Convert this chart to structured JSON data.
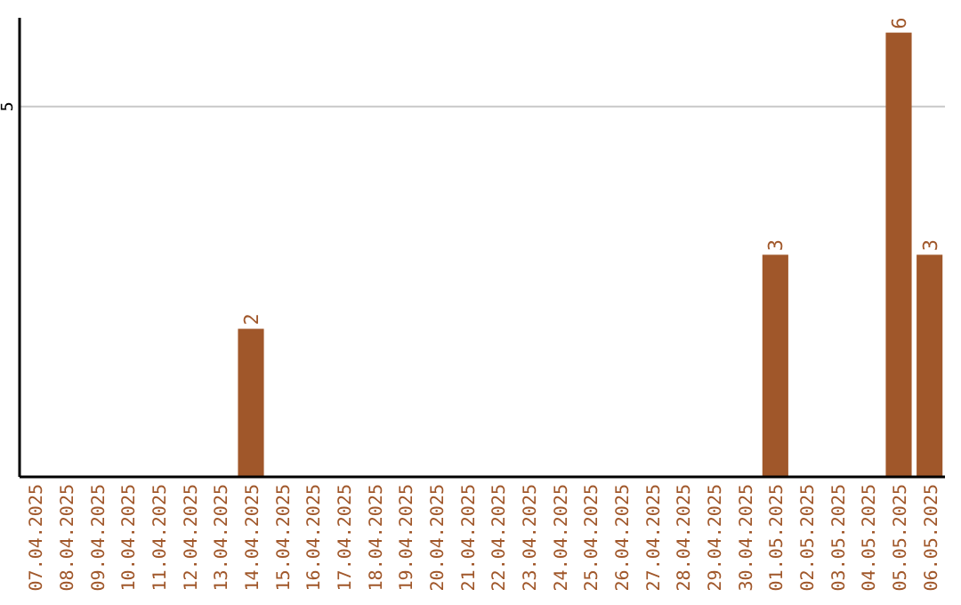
{
  "chart_data": {
    "type": "bar",
    "categories": [
      "07.04.2025",
      "08.04.2025",
      "09.04.2025",
      "10.04.2025",
      "11.04.2025",
      "12.04.2025",
      "13.04.2025",
      "14.04.2025",
      "15.04.2025",
      "16.04.2025",
      "17.04.2025",
      "18.04.2025",
      "19.04.2025",
      "20.04.2025",
      "21.04.2025",
      "22.04.2025",
      "23.04.2025",
      "24.04.2025",
      "25.04.2025",
      "26.04.2025",
      "27.04.2025",
      "28.04.2025",
      "29.04.2025",
      "30.04.2025",
      "01.05.2025",
      "02.05.2025",
      "03.05.2025",
      "04.05.2025",
      "05.05.2025",
      "06.05.2025"
    ],
    "values": [
      0,
      0,
      0,
      0,
      0,
      0,
      0,
      2,
      0,
      0,
      0,
      0,
      0,
      0,
      0,
      0,
      0,
      0,
      0,
      0,
      0,
      0,
      0,
      0,
      3,
      0,
      0,
      0,
      6,
      3
    ],
    "value_labels": [
      null,
      null,
      null,
      null,
      null,
      null,
      null,
      "2",
      null,
      null,
      null,
      null,
      null,
      null,
      null,
      null,
      null,
      null,
      null,
      null,
      null,
      null,
      null,
      null,
      "3",
      null,
      null,
      null,
      "6",
      "3"
    ],
    "color": "#a0572a",
    "ylim": [
      0,
      6.2
    ],
    "yticks": [
      5
    ],
    "grid": "y"
  }
}
